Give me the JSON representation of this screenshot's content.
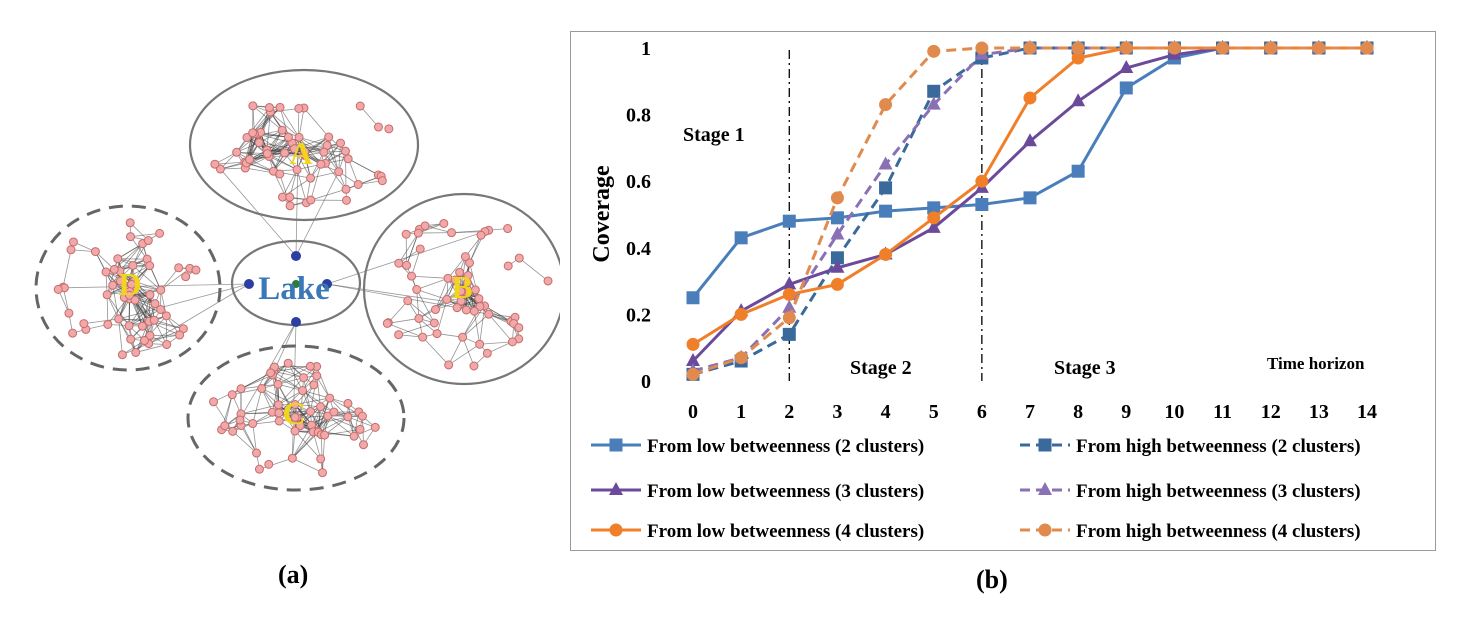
{
  "panel_a": {
    "label": "(a)",
    "clusters": [
      {
        "name": "A",
        "border": "solid"
      },
      {
        "name": "B",
        "border": "solid"
      },
      {
        "name": "C",
        "border": "dashed"
      },
      {
        "name": "D",
        "border": "dashed"
      }
    ],
    "center_label": "Lake",
    "colors": {
      "node": "#f0a8a8",
      "node_stroke": "#c86b6b",
      "edge": "#444444",
      "cluster_label": "#f2d51a",
      "lake_label": "#3a78b8"
    }
  },
  "panel_b": {
    "label": "(b)",
    "stage_labels": [
      "Stage 1",
      "Stage 2",
      "Stage 3"
    ],
    "time_horizon_label": "Time horizon"
  },
  "chart_data": {
    "type": "line",
    "ylabel": "Coverage",
    "xlabel": "Time horizon",
    "x": [
      0,
      1,
      2,
      3,
      4,
      5,
      6,
      7,
      8,
      9,
      10,
      11,
      12,
      13,
      14
    ],
    "xlim": [
      0,
      14
    ],
    "ylim": [
      0,
      1
    ],
    "yticks": [
      "0",
      "0.2",
      "0.4",
      "0.6",
      "0.8",
      "1"
    ],
    "grid": false,
    "legend_position": "bottom",
    "stage_dividers_x": [
      2,
      6
    ],
    "series": [
      {
        "name": "From low betweenness (2 clusters)",
        "color": "#4a7ebb",
        "dash": "solid",
        "marker": "square",
        "values": [
          0.25,
          0.43,
          0.48,
          0.49,
          0.51,
          0.52,
          0.53,
          0.55,
          0.63,
          0.88,
          0.97,
          1.0,
          1.0,
          1.0,
          1.0
        ]
      },
      {
        "name": "From high betweenness (2 clusters)",
        "color": "#3a6a9c",
        "dash": "dashed",
        "marker": "square",
        "values": [
          0.02,
          0.06,
          0.14,
          0.37,
          0.58,
          0.87,
          0.97,
          1.0,
          1.0,
          1.0,
          1.0,
          1.0,
          1.0,
          1.0,
          1.0
        ]
      },
      {
        "name": "From low betweenness (3 clusters)",
        "color": "#6b4a9b",
        "dash": "solid",
        "marker": "triangle",
        "values": [
          0.06,
          0.21,
          0.29,
          0.34,
          0.38,
          0.46,
          0.58,
          0.72,
          0.84,
          0.94,
          0.98,
          1.0,
          1.0,
          1.0,
          1.0
        ]
      },
      {
        "name": "From high betweenness (3 clusters)",
        "color": "#8a70b4",
        "dash": "dashed",
        "marker": "triangle",
        "values": [
          0.03,
          0.07,
          0.22,
          0.44,
          0.65,
          0.83,
          0.98,
          1.0,
          1.0,
          1.0,
          1.0,
          1.0,
          1.0,
          1.0,
          1.0
        ]
      },
      {
        "name": "From low betweenness (4 clusters)",
        "color": "#f07f2a",
        "dash": "solid",
        "marker": "circle",
        "values": [
          0.11,
          0.2,
          0.26,
          0.29,
          0.38,
          0.49,
          0.6,
          0.85,
          0.97,
          1.0,
          1.0,
          1.0,
          1.0,
          1.0,
          1.0
        ]
      },
      {
        "name": "From high betweenness (4 clusters)",
        "color": "#e08a4e",
        "dash": "dashed",
        "marker": "circle",
        "values": [
          0.02,
          0.07,
          0.19,
          0.55,
          0.83,
          0.99,
          1.0,
          1.0,
          1.0,
          1.0,
          1.0,
          1.0,
          1.0,
          1.0,
          1.0
        ]
      }
    ]
  }
}
